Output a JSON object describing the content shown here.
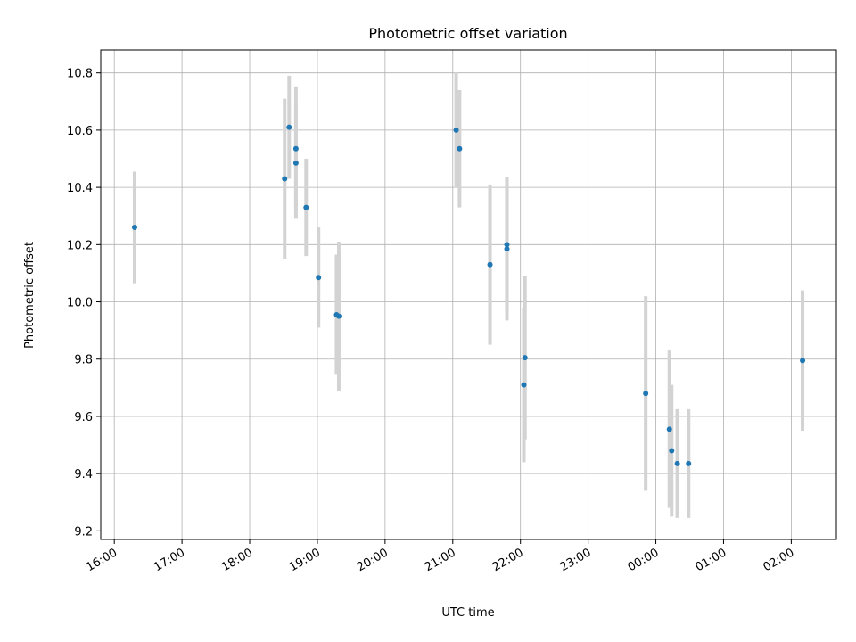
{
  "chart_data": {
    "type": "scatter",
    "title": "Photometric offset variation",
    "xlabel": "UTC time",
    "ylabel": "Photometric offset",
    "x_unit": "UTC time (HH:MM), spanning midnight",
    "xlim": [
      "15:48",
      "02:40"
    ],
    "ylim": [
      9.17,
      10.88
    ],
    "grid": true,
    "x_ticks": [
      "16:00",
      "17:00",
      "18:00",
      "19:00",
      "20:00",
      "21:00",
      "22:00",
      "23:00",
      "00:00",
      "01:00",
      "02:00"
    ],
    "y_ticks": [
      9.2,
      9.4,
      9.6,
      9.8,
      10.0,
      10.2,
      10.4,
      10.6,
      10.8
    ],
    "y_tick_labels": [
      "9.2",
      "9.4",
      "9.6",
      "9.8",
      "10.0",
      "10.2",
      "10.4",
      "10.6",
      "10.8"
    ],
    "colors": {
      "point": "#1f77b4",
      "error_bar": "#d3d3d3"
    },
    "points": [
      {
        "x": "16:18",
        "y": 10.26,
        "yerr": 0.195
      },
      {
        "x": "18:31",
        "y": 10.43,
        "yerr": 0.28
      },
      {
        "x": "18:35",
        "y": 10.61,
        "yerr": 0.18
      },
      {
        "x": "18:41",
        "y": 10.535,
        "yerr": 0.215
      },
      {
        "x": "18:41",
        "y": 10.485,
        "yerr": 0.195
      },
      {
        "x": "18:50",
        "y": 10.33,
        "yerr": 0.17
      },
      {
        "x": "19:01",
        "y": 10.085,
        "yerr": 0.175
      },
      {
        "x": "19:17",
        "y": 9.955,
        "yerr": 0.21
      },
      {
        "x": "19:19",
        "y": 9.95,
        "yerr": 0.26
      },
      {
        "x": "21:03",
        "y": 10.6,
        "yerr": 0.2
      },
      {
        "x": "21:06",
        "y": 10.535,
        "yerr": 0.205
      },
      {
        "x": "21:33",
        "y": 10.13,
        "yerr": 0.28
      },
      {
        "x": "21:48",
        "y": 10.185,
        "yerr": 0.25
      },
      {
        "x": "21:48",
        "y": 10.2,
        "yerr": 0.235
      },
      {
        "x": "22:03",
        "y": 9.71,
        "yerr": 0.27
      },
      {
        "x": "22:04",
        "y": 9.805,
        "yerr": 0.285
      },
      {
        "x": "23:51",
        "y": 9.68,
        "yerr": 0.34
      },
      {
        "x": "00:12",
        "y": 9.555,
        "yerr": 0.275
      },
      {
        "x": "00:14",
        "y": 9.48,
        "yerr": 0.23
      },
      {
        "x": "00:19",
        "y": 9.435,
        "yerr": 0.19
      },
      {
        "x": "00:29",
        "y": 9.435,
        "yerr": 0.19
      },
      {
        "x": "02:10",
        "y": 9.795,
        "yerr": 0.245
      }
    ]
  }
}
